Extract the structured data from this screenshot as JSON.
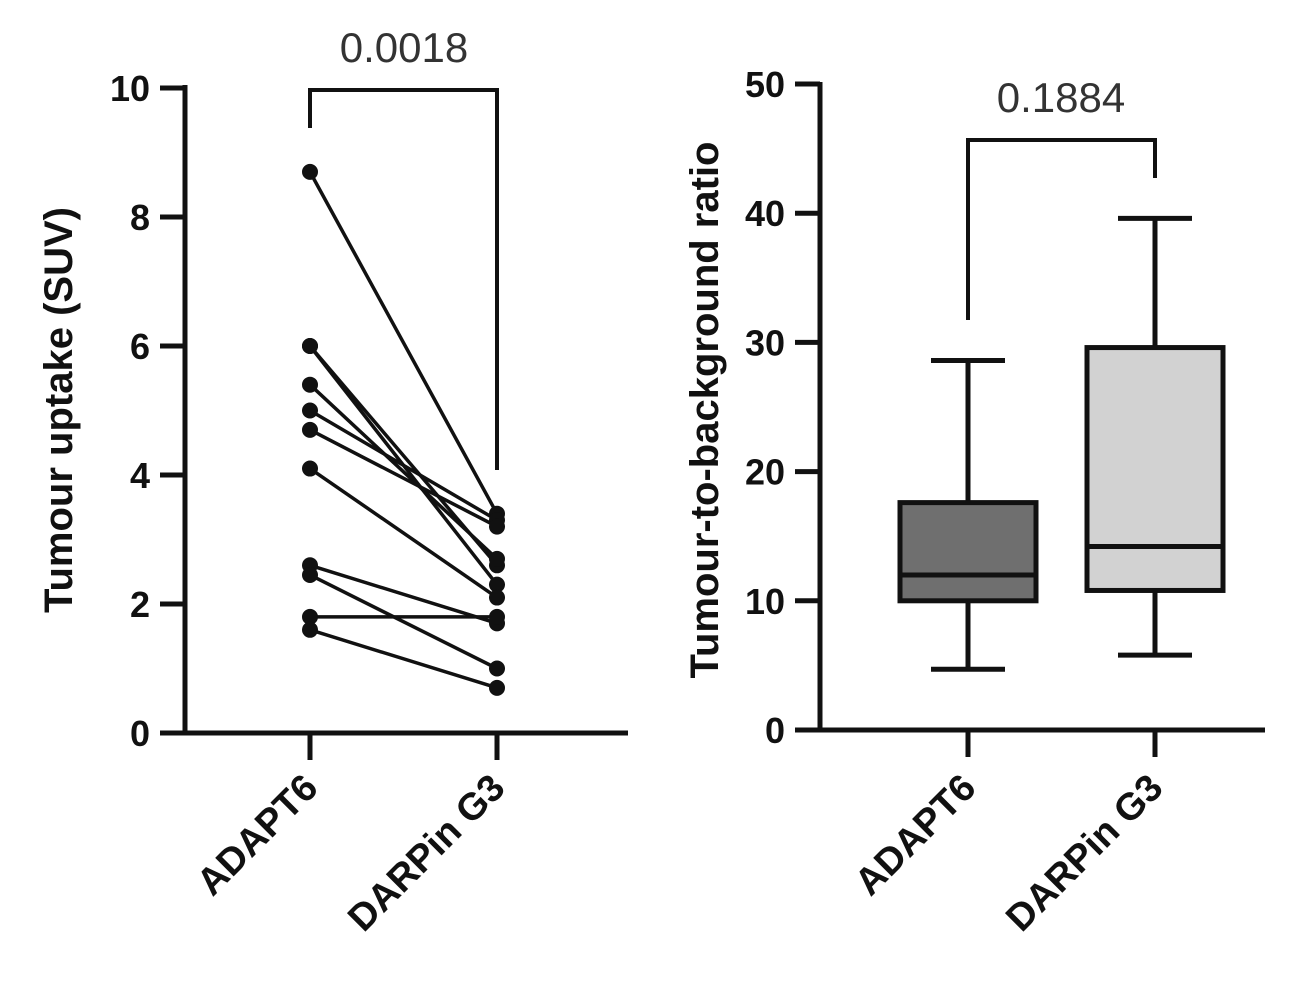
{
  "chart_data": [
    {
      "type": "paired-scatter",
      "title": "",
      "xlabel": "",
      "ylabel": "Tumour uptake (SUV)",
      "ylim": [
        0,
        10
      ],
      "yticks": [
        "0",
        "2",
        "4",
        "6",
        "8",
        "10"
      ],
      "categories": [
        "ADAPT6",
        "DARPin G3"
      ],
      "pairs": [
        [
          8.7,
          3.4
        ],
        [
          6.0,
          2.3
        ],
        [
          6.0,
          2.6
        ],
        [
          5.4,
          2.7
        ],
        [
          5.0,
          3.3
        ],
        [
          4.7,
          3.2
        ],
        [
          4.1,
          2.1
        ],
        [
          2.6,
          1.7
        ],
        [
          2.45,
          1.0
        ],
        [
          1.8,
          1.8
        ],
        [
          1.6,
          0.7
        ]
      ],
      "annotation": "0.0018"
    },
    {
      "type": "boxplot",
      "title": "",
      "xlabel": "",
      "ylabel": "Tumour-to-background ratio",
      "ylim": [
        0,
        50
      ],
      "yticks": [
        "0",
        "10",
        "20",
        "30",
        "40",
        "50"
      ],
      "categories": [
        "ADAPT6",
        "DARPin G3"
      ],
      "boxes": [
        {
          "name": "ADAPT6",
          "min": 4.7,
          "q1": 10.0,
          "median": 12.0,
          "q3": 17.6,
          "max": 28.6,
          "color": "#6f6f6f"
        },
        {
          "name": "DARPin G3",
          "min": 5.8,
          "q1": 10.8,
          "median": 14.2,
          "q3": 29.6,
          "max": 39.6,
          "color": "#d2d2d2"
        }
      ],
      "annotation": "0.1884"
    }
  ]
}
